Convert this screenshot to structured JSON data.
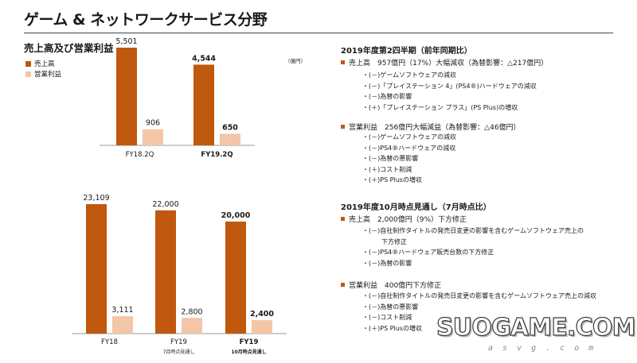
{
  "page": {
    "title": "ゲーム & ネットワークサービス分野",
    "section_title": "売上高及び営業利益",
    "unit": "（億円）"
  },
  "legend": [
    {
      "label": "売上高",
      "color": "#c0580d"
    },
    {
      "label": "営業利益",
      "color": "#f2c6a7"
    }
  ],
  "chart_data": [
    {
      "type": "bar",
      "categories": [
        "FY18.2Q",
        "FY19.2Q"
      ],
      "category_sublabels": [
        "",
        ""
      ],
      "category_bold": [
        false,
        true
      ],
      "series": [
        {
          "name": "売上高",
          "values": [
            5501,
            4544
          ],
          "labels": [
            "5,501",
            "4,544"
          ],
          "color": "#c0580d"
        },
        {
          "name": "営業利益",
          "values": [
            906,
            650
          ],
          "labels": [
            "906",
            "650"
          ],
          "color": "#f2c6a7"
        }
      ],
      "value_label_bold": [
        false,
        true
      ],
      "ylim": [
        0,
        6000
      ],
      "title": "",
      "xlabel": "",
      "ylabel": ""
    },
    {
      "type": "bar",
      "categories": [
        "FY18",
        "FY19",
        "FY19"
      ],
      "category_sublabels": [
        "",
        "7月時点見通し",
        "10月時点見通し"
      ],
      "category_bold": [
        false,
        false,
        true
      ],
      "series": [
        {
          "name": "売上高",
          "values": [
            23109,
            22000,
            20000
          ],
          "labels": [
            "23,109",
            "22,000",
            "20,000"
          ],
          "color": "#c0580d"
        },
        {
          "name": "営業利益",
          "values": [
            3111,
            2800,
            2400
          ],
          "labels": [
            "3,111",
            "2,800",
            "2,400"
          ],
          "color": "#f2c6a7"
        }
      ],
      "value_label_bold": [
        false,
        false,
        true
      ],
      "ylim": [
        0,
        25000
      ],
      "title": "",
      "xlabel": "",
      "ylabel": ""
    }
  ],
  "right": {
    "block1": {
      "heading": "2019年度第2四半期（前年同期比）",
      "bullet1": "売上高　957億円（17%）大幅減収（為替影響：△217億円）",
      "bullet1_items": [
        "・(－)ゲームソフトウェアの減収",
        "・(－)「プレイステーション 4」(PS4®)ハードウェアの減収",
        "・(－)為替の影響",
        "・(＋)「プレイステーション プラス」(PS Plus)の増収"
      ],
      "bullet2": "営業利益　256億円大幅減益（為替影響：△46億円）",
      "bullet2_items": [
        "・(－)ゲームソフトウェアの減収",
        "・(－)PS4®ハードウェアの減収",
        "・(－)為替の悪影響",
        "・(＋)コスト削減",
        "・(＋)PS Plusの増収"
      ]
    },
    "block2": {
      "heading": "2019年度10月時点見通し（7月時点比）",
      "bullet1": "売上高　2,000億円（9%）下方修正",
      "bullet1_items": [
        "・(－)自社制作タイトルの発売日変更の影響を含むゲームソフトウェア売上の",
        "　　　下方修正",
        "・(－)PS4®ハードウェア販売台数の下方修正",
        "・(－)為替の影響"
      ],
      "bullet2": "営業利益　400億円下方修正",
      "bullet2_items": [
        "・(－)自社制作タイトルの発売日変更の影響を含むゲームソフトウェア売上の減収",
        "・(－)為替の悪影響",
        "・(－)コスト削減",
        "・(＋)PS Plusの増収"
      ]
    }
  },
  "watermark": {
    "text": "SUOGAME.COM",
    "sub": "a s v g . c o m"
  }
}
